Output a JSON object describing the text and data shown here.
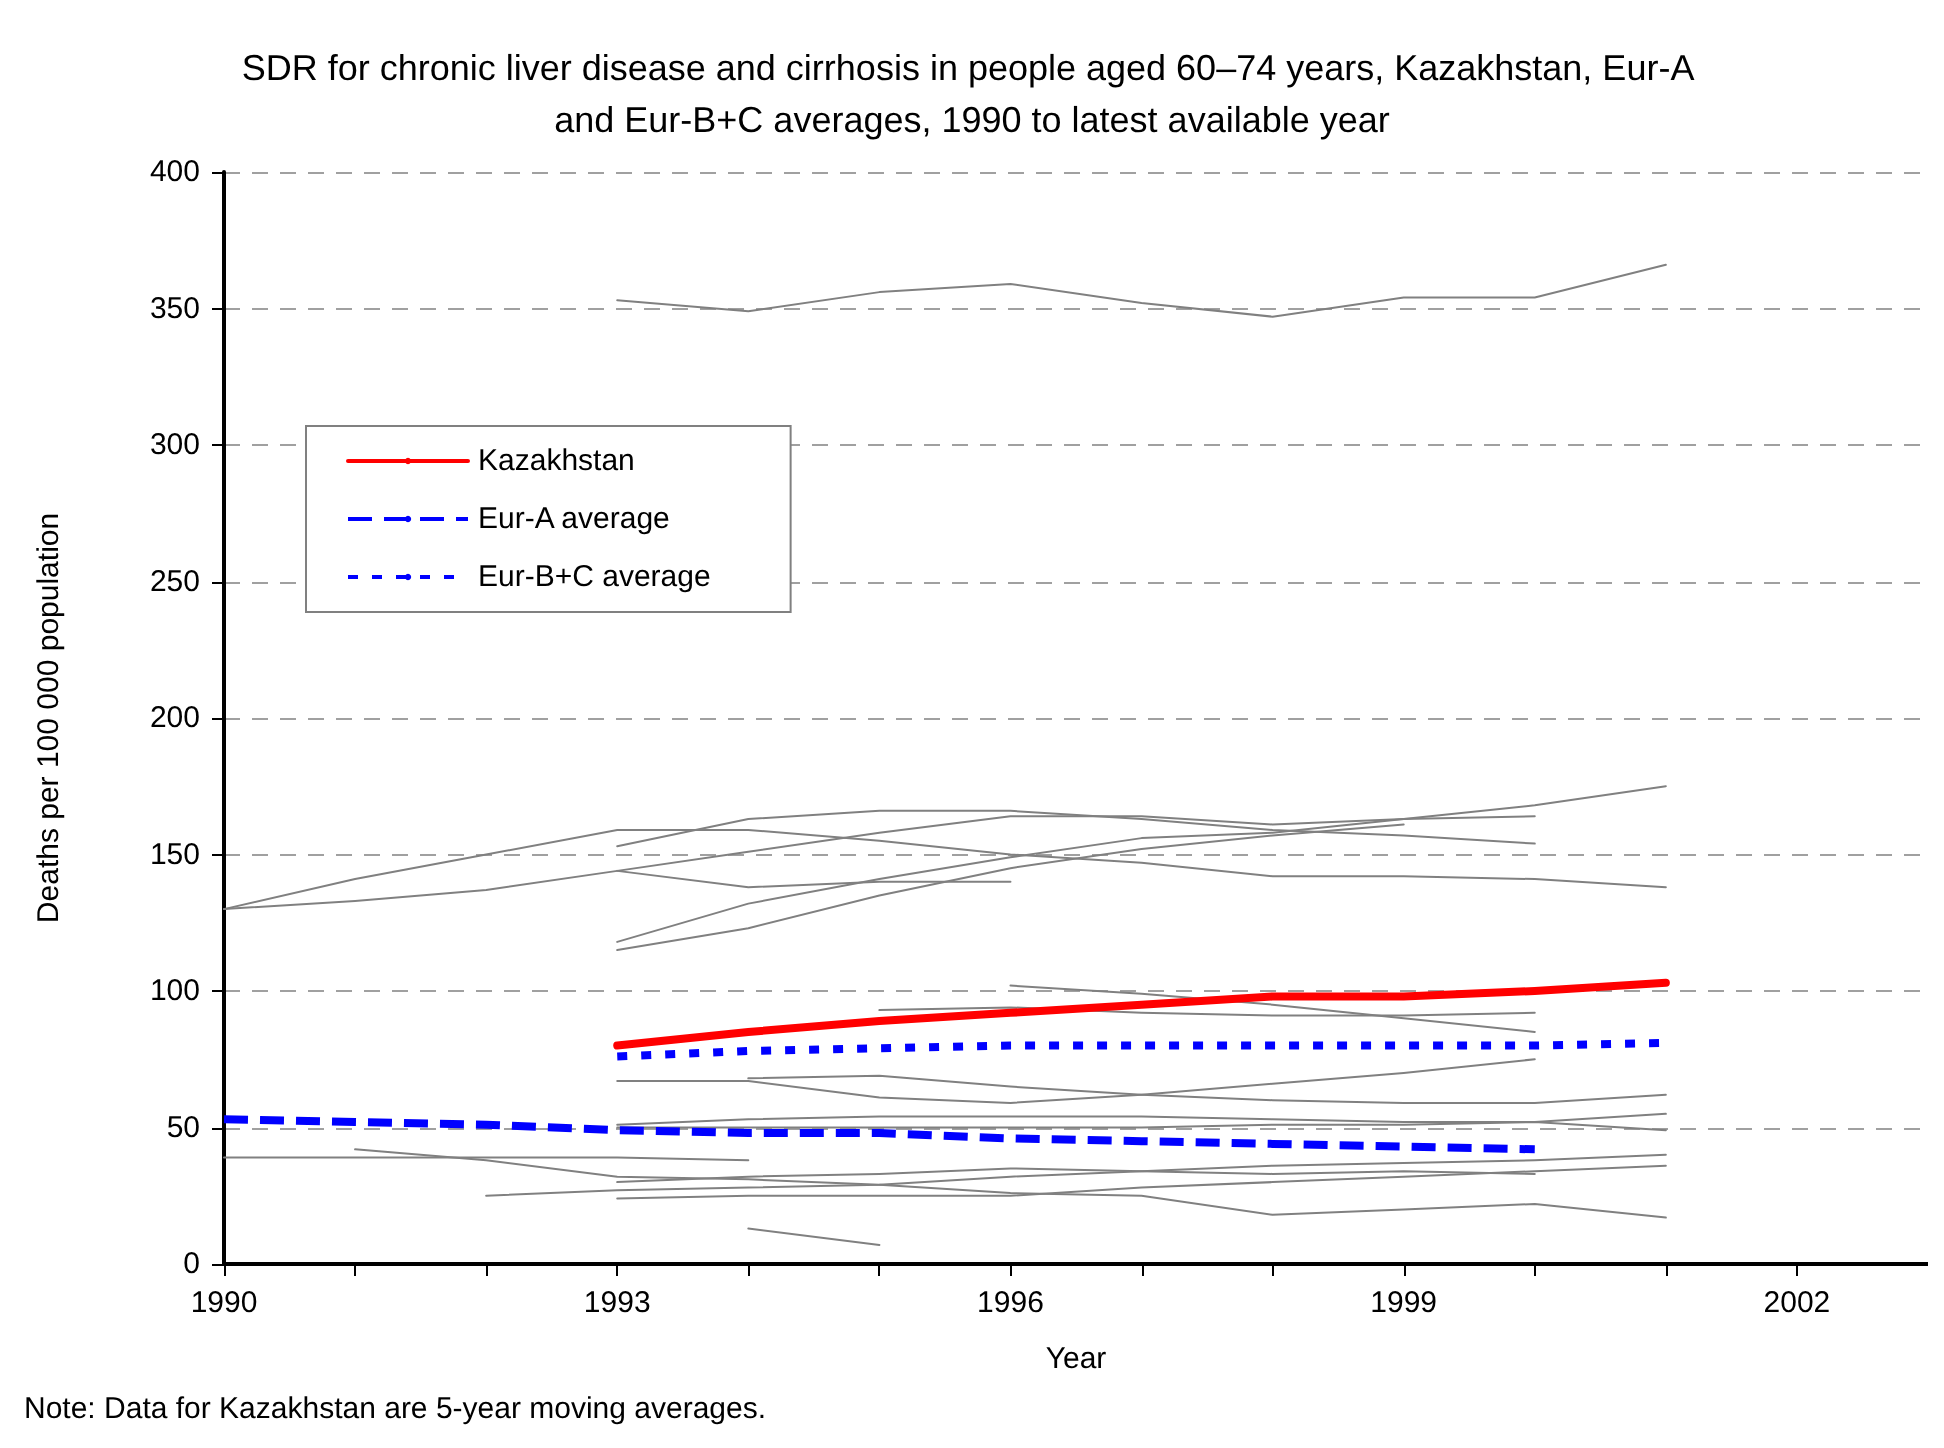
{
  "chart_data": {
    "type": "line",
    "title": "SDR for chronic liver disease and cirrhosis in people aged 60–74 years, Kazakhstan, Eur-A and Eur-B+C averages, 1990 to latest available year",
    "xlabel": "Year",
    "ylabel": "Deaths per 100 000 population",
    "xlim": [
      1990,
      2003
    ],
    "xticks": [
      1990,
      {
        "value": 1991,
        "label": null
      },
      {
        "value": 1992,
        "label": null
      },
      1993,
      {
        "value": 1994,
        "label": null
      },
      {
        "value": 1995,
        "label": null
      },
      1996,
      {
        "value": 1997,
        "label": null
      },
      {
        "value": 1998,
        "label": null
      },
      1999,
      {
        "value": 2000,
        "label": null
      },
      {
        "value": 2001,
        "label": null
      },
      2002
    ],
    "ylim": [
      0,
      400
    ],
    "yticks": [
      0,
      50,
      100,
      150,
      200,
      250,
      300,
      350,
      400
    ],
    "grid": "y",
    "legend": "top left",
    "marker": "none",
    "annotations": [
      "Note: Data for Kazakhstan are 5-year moving averages."
    ],
    "series": [
      {
        "color": "#808080",
        "x": [
          1993,
          1994,
          1995,
          1996,
          1997,
          1998,
          1999,
          2000,
          2001
        ],
        "values": [
          353,
          349,
          356,
          359,
          352,
          347,
          354,
          354,
          366
        ]
      },
      {
        "color": "#808080",
        "x": [
          1990,
          1991,
          1992,
          1993,
          1994,
          1995,
          1996,
          1997,
          1998,
          1999,
          2000,
          2001
        ],
        "values": [
          130,
          141,
          150,
          159,
          159,
          155,
          150,
          147,
          142,
          142,
          141,
          138
        ]
      },
      {
        "color": "#808080",
        "x": [
          1990,
          1991,
          1992,
          1993,
          1994,
          1995,
          1996,
          1997,
          1998,
          1999,
          2000
        ],
        "values": [
          130,
          133,
          137,
          144,
          151,
          158,
          164,
          164,
          161,
          163,
          164
        ]
      },
      {
        "color": "#808080",
        "x": [
          1993,
          1994,
          1995,
          1996,
          1997,
          1998,
          1999,
          2000
        ],
        "values": [
          153,
          163,
          166,
          166,
          163,
          159,
          157,
          154
        ]
      },
      {
        "color": "#808080",
        "x": [
          1993,
          1994,
          1995,
          1996
        ],
        "values": [
          144,
          138,
          140,
          140
        ]
      },
      {
        "color": "#808080",
        "x": [
          1993,
          1994,
          1995,
          1996,
          1997,
          1998,
          1999,
          2000,
          2001
        ],
        "values": [
          118,
          132,
          141,
          149,
          156,
          158,
          163,
          168,
          175
        ]
      },
      {
        "color": "#808080",
        "x": [
          1993,
          1994,
          1995,
          1996,
          1997,
          1998,
          1999
        ],
        "values": [
          115,
          123,
          135,
          145,
          152,
          157,
          161
        ]
      },
      {
        "color": "#808080",
        "x": [
          1996,
          1997,
          1998,
          1999,
          2000
        ],
        "values": [
          102,
          99,
          95,
          90,
          85
        ]
      },
      {
        "color": "#808080",
        "x": [
          1995,
          1996,
          1997,
          1998,
          1999,
          2000
        ],
        "values": [
          93,
          94,
          92,
          91,
          91,
          92
        ]
      },
      {
        "color": "#808080",
        "x": [
          1993,
          1994,
          1995,
          1996,
          1997,
          1998,
          1999,
          2000
        ],
        "values": [
          67,
          67,
          61,
          59,
          62,
          66,
          70,
          75
        ]
      },
      {
        "color": "#808080",
        "x": [
          1994,
          1995,
          1996,
          1997,
          1998,
          1999,
          2000,
          2001
        ],
        "values": [
          68,
          69,
          65,
          62,
          60,
          59,
          59,
          62
        ]
      },
      {
        "color": "#808080",
        "x": [
          1993,
          1994,
          1995,
          1996,
          1997,
          1998,
          1999,
          2000,
          2001
        ],
        "values": [
          51,
          53,
          54,
          54,
          54,
          53,
          52,
          52,
          55
        ]
      },
      {
        "color": "#808080",
        "x": [
          1993,
          1994,
          1995,
          1996,
          1997,
          1998,
          1999,
          2000,
          2001
        ],
        "values": [
          50,
          50,
          50,
          50,
          50,
          51,
          51,
          52,
          49
        ]
      },
      {
        "color": "#808080",
        "x": [
          1990,
          1991,
          1992,
          1993,
          1994
        ],
        "values": [
          39,
          39,
          39,
          39,
          38
        ]
      },
      {
        "color": "#808080",
        "x": [
          1991,
          1992,
          1993,
          1994,
          1995,
          1996,
          1997,
          1998,
          1999,
          2000,
          2001
        ],
        "values": [
          42,
          38,
          32,
          31,
          29,
          26,
          25,
          18,
          20,
          22,
          17
        ]
      },
      {
        "color": "#808080",
        "x": [
          1992,
          1993,
          1994,
          1995,
          1996,
          1997,
          1998,
          1999,
          2000,
          2001
        ],
        "values": [
          25,
          27,
          28,
          29,
          32,
          34,
          36,
          37,
          38,
          40
        ]
      },
      {
        "color": "#808080",
        "x": [
          1993,
          1994,
          1995,
          1996,
          1997,
          1998,
          1999,
          2000,
          2001
        ],
        "values": [
          24,
          25,
          25,
          25,
          28,
          30,
          32,
          34,
          36
        ]
      },
      {
        "color": "#808080",
        "x": [
          1993,
          1994,
          1995,
          1996,
          1997,
          1998,
          1999,
          2000
        ],
        "values": [
          30,
          32,
          33,
          35,
          34,
          33,
          34,
          33
        ]
      },
      {
        "color": "#808080",
        "x": [
          1994,
          1995
        ],
        "values": [
          13,
          7
        ]
      },
      {
        "name": "Kazakhstan",
        "color": "#ff0000",
        "line_style": "solid",
        "x": [
          1993,
          1994,
          1995,
          1996,
          1997,
          1998,
          1999,
          2000,
          2001
        ],
        "values": [
          80,
          85,
          89,
          92,
          95,
          98,
          98,
          100,
          103
        ]
      },
      {
        "name": "Eur-A average",
        "color": "#0000ff",
        "line_style": "dashed",
        "x": [
          1990,
          1991,
          1992,
          1993,
          1994,
          1995,
          1996,
          1997,
          1998,
          1999,
          2000
        ],
        "values": [
          53,
          52,
          51,
          49,
          48,
          48,
          46,
          45,
          44,
          43,
          42
        ]
      },
      {
        "name": "Eur-B+C average",
        "color": "#0000ff",
        "line_style": "dotted",
        "x": [
          1993,
          1994,
          1995,
          1996,
          1997,
          1998,
          1999,
          2000,
          2001
        ],
        "values": [
          76,
          78,
          79,
          80,
          80,
          80,
          80,
          80,
          81
        ]
      }
    ]
  }
}
